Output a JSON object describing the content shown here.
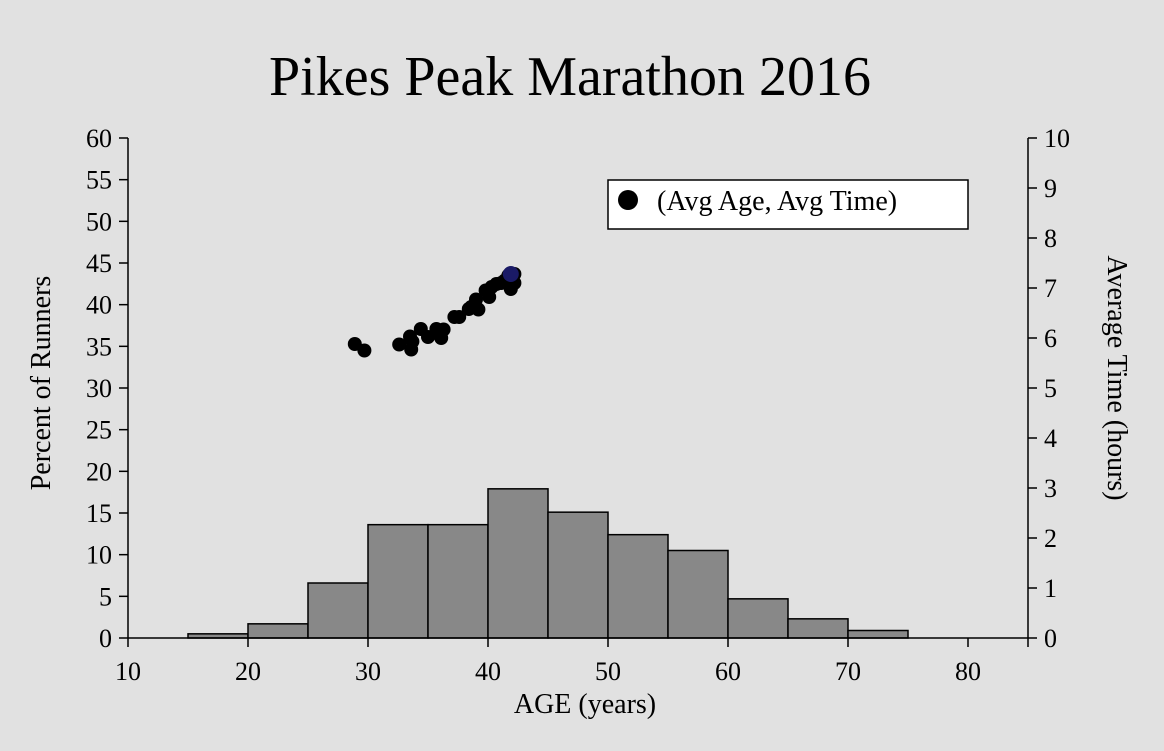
{
  "chart_data": {
    "type": "bar",
    "title": "Pikes Peak Marathon 2016",
    "xlabel": "AGE (years)",
    "ylabel": "Percent of Runners",
    "y2label": "Average Time (hours)",
    "y2label_color": "#0000ff",
    "xlim": [
      10,
      85
    ],
    "ylim": [
      0,
      60
    ],
    "y2lim": [
      0,
      10
    ],
    "xticks": [
      10,
      20,
      30,
      40,
      50,
      60,
      70,
      80
    ],
    "yticks": [
      0,
      5,
      10,
      15,
      20,
      25,
      30,
      35,
      40,
      45,
      50,
      55,
      60
    ],
    "y2ticks": [
      0,
      1,
      2,
      3,
      4,
      5,
      6,
      7,
      8,
      9,
      10
    ],
    "grid": false,
    "legend": {
      "position": "top-right",
      "entries": [
        "(Avg Age, Avg Time)"
      ]
    },
    "histogram": {
      "bin_width": 5,
      "bins": [
        {
          "x0": 15,
          "x1": 20,
          "value": 0.5
        },
        {
          "x0": 20,
          "x1": 25,
          "value": 1.7
        },
        {
          "x0": 25,
          "x1": 30,
          "value": 6.6
        },
        {
          "x0": 30,
          "x1": 35,
          "value": 13.6
        },
        {
          "x0": 35,
          "x1": 40,
          "value": 13.6
        },
        {
          "x0": 40,
          "x1": 45,
          "value": 17.9
        },
        {
          "x0": 45,
          "x1": 50,
          "value": 15.1
        },
        {
          "x0": 50,
          "x1": 55,
          "value": 12.4
        },
        {
          "x0": 55,
          "x1": 60,
          "value": 10.5
        },
        {
          "x0": 60,
          "x1": 65,
          "value": 4.7
        },
        {
          "x0": 65,
          "x1": 70,
          "value": 2.3
        },
        {
          "x0": 70,
          "x1": 75,
          "value": 0.9
        }
      ],
      "bar_color": "#888888"
    },
    "scatter": {
      "name": "(Avg Age, Avg Time)",
      "axis": "y2",
      "color": "#000000",
      "highlight_color": "#1a1a66",
      "points": [
        {
          "x": 28.9,
          "y": 5.88
        },
        {
          "x": 29.7,
          "y": 5.75
        },
        {
          "x": 32.6,
          "y": 5.87
        },
        {
          "x": 33.5,
          "y": 6.03
        },
        {
          "x": 33.6,
          "y": 5.77
        },
        {
          "x": 33.7,
          "y": 5.93
        },
        {
          "x": 34.4,
          "y": 6.18
        },
        {
          "x": 35.0,
          "y": 6.02
        },
        {
          "x": 35.7,
          "y": 6.18
        },
        {
          "x": 36.1,
          "y": 6.0
        },
        {
          "x": 36.3,
          "y": 6.17
        },
        {
          "x": 37.2,
          "y": 6.42
        },
        {
          "x": 37.6,
          "y": 6.42
        },
        {
          "x": 38.4,
          "y": 6.58
        },
        {
          "x": 38.6,
          "y": 6.62
        },
        {
          "x": 39.0,
          "y": 6.77
        },
        {
          "x": 39.2,
          "y": 6.57
        },
        {
          "x": 39.8,
          "y": 6.95
        },
        {
          "x": 40.1,
          "y": 6.82
        },
        {
          "x": 40.3,
          "y": 7.02
        },
        {
          "x": 40.7,
          "y": 7.08
        },
        {
          "x": 41.1,
          "y": 7.1
        },
        {
          "x": 41.4,
          "y": 7.15
        },
        {
          "x": 41.7,
          "y": 7.25
        },
        {
          "x": 41.9,
          "y": 6.98
        },
        {
          "x": 42.2,
          "y": 7.1
        },
        {
          "x": 42.2,
          "y": 7.28
        },
        {
          "x": 41.9,
          "y": 7.28,
          "highlight": true
        }
      ]
    }
  }
}
